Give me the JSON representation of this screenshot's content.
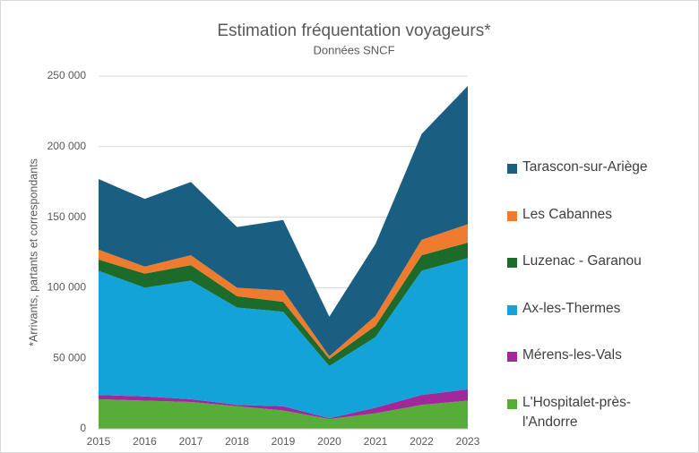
{
  "chart_data": {
    "type": "stacked_area",
    "title": "Estimation fréquentation voyageurs*",
    "subtitle": "Données SNCF",
    "y_label": "*Arrivants, partants et correspondants",
    "categories": [
      "2015",
      "2016",
      "2017",
      "2018",
      "2019",
      "2020",
      "2021",
      "2022",
      "2023"
    ],
    "ylim": [
      0,
      250000
    ],
    "yticks": [
      0,
      {
        "value": 50000,
        "label": "50 000"
      },
      {
        "value": 100000,
        "label": "100 000"
      },
      {
        "value": 150000,
        "label": "150 000"
      },
      {
        "value": 200000,
        "label": "200 000"
      },
      {
        "value": 250000,
        "label": "250 000"
      }
    ],
    "grid": true,
    "legend": "right",
    "series": [
      {
        "name": "L'Hospitalet-près-l'Andorre",
        "color": "#58ac3a",
        "values": [
          21000,
          20000,
          19000,
          16000,
          13000,
          7000,
          11000,
          17000,
          20000
        ]
      },
      {
        "name": "Mérens-les-Vals",
        "color": "#a0289a",
        "values": [
          3000,
          3000,
          2000,
          1000,
          3000,
          500,
          4000,
          7000,
          8000
        ]
      },
      {
        "name": "Ax-les-Thermes",
        "color": "#13a3d8",
        "values": [
          88000,
          77000,
          84000,
          69000,
          67000,
          37000,
          50000,
          88000,
          93000
        ]
      },
      {
        "name": "Luzenac - Garanou",
        "color": "#1d6b2a",
        "values": [
          8000,
          10000,
          11000,
          8000,
          7000,
          5000,
          8000,
          11000,
          11000
        ]
      },
      {
        "name": "Les Cabannes",
        "color": "#ef7b2f",
        "values": [
          7000,
          5000,
          7000,
          6000,
          8000,
          2000,
          7000,
          11000,
          13000
        ]
      },
      {
        "name": "Tarascon-sur-Ariège",
        "color": "#1a5e82",
        "values": [
          50000,
          48000,
          52000,
          43000,
          50000,
          28000,
          51000,
          75000,
          98000
        ]
      }
    ]
  }
}
